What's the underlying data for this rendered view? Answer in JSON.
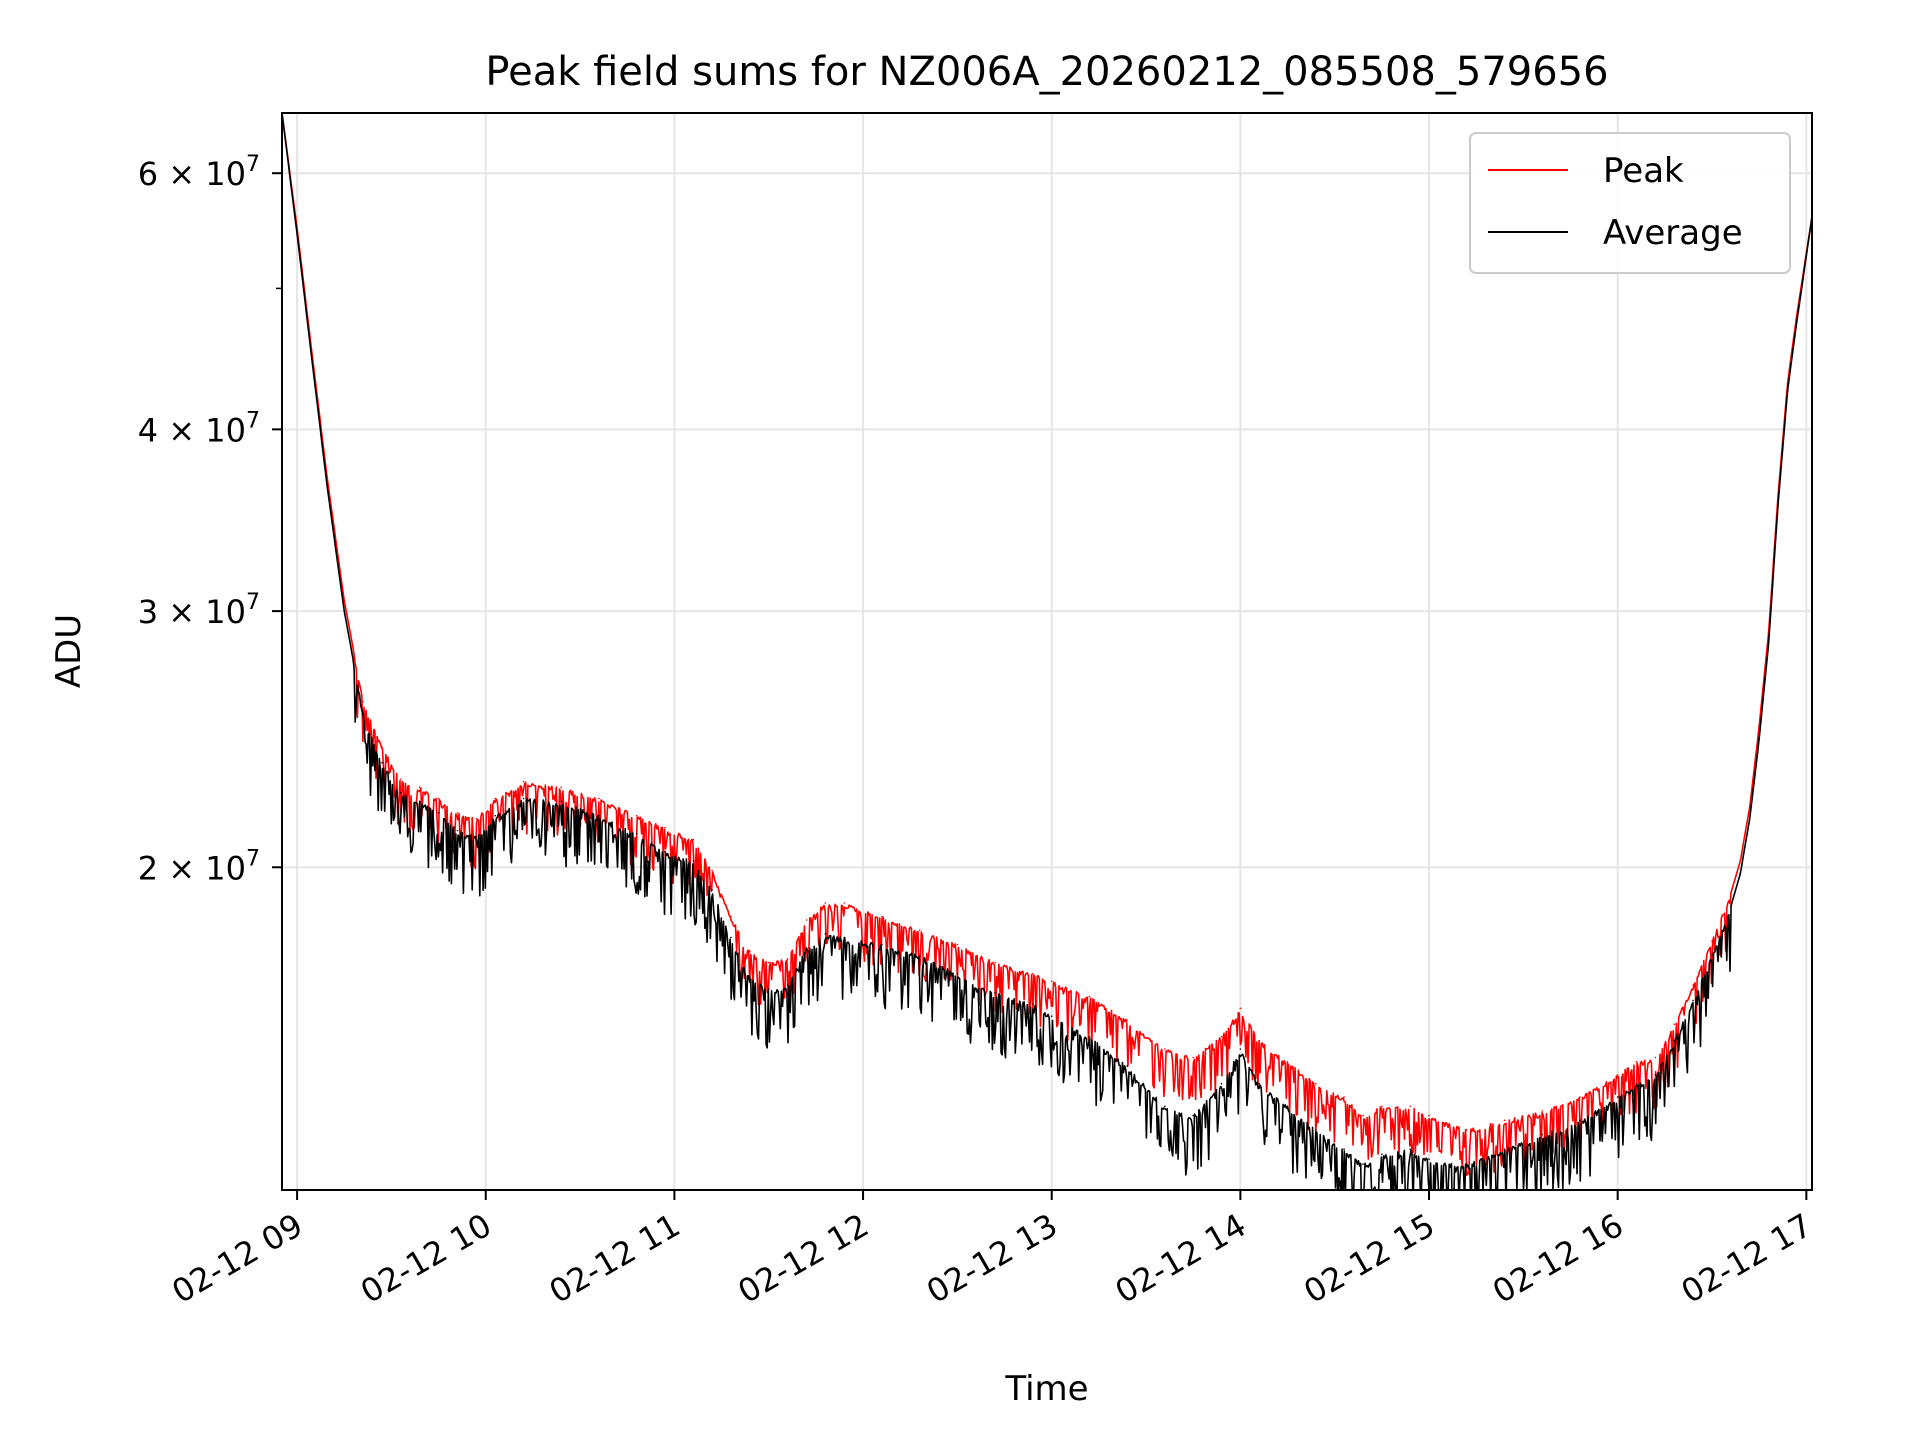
{
  "chart_data": {
    "type": "line",
    "title": "Peak field sums for NZ006A_20260212_085508_579656",
    "xlabel": "Time",
    "ylabel": "ADU",
    "yscale": "log",
    "grid": true,
    "legend_position": "upper right",
    "xlim_hours": [
      8.92,
      17.03
    ],
    "ylim": [
      12000000,
      66000000
    ],
    "x_ticks": [
      {
        "hour": 9,
        "label": "02-12 09"
      },
      {
        "hour": 10,
        "label": "02-12 10"
      },
      {
        "hour": 11,
        "label": "02-12 11"
      },
      {
        "hour": 12,
        "label": "02-12 12"
      },
      {
        "hour": 13,
        "label": "02-12 13"
      },
      {
        "hour": 14,
        "label": "02-12 14"
      },
      {
        "hour": 15,
        "label": "02-12 15"
      },
      {
        "hour": 16,
        "label": "02-12 16"
      },
      {
        "hour": 17,
        "label": "02-12 17"
      }
    ],
    "y_ticks": [
      {
        "value": 20000000,
        "mant": "2",
        "exp": "7"
      },
      {
        "value": 30000000,
        "mant": "3",
        "exp": "7"
      },
      {
        "value": 40000000,
        "mant": "4",
        "exp": "7"
      },
      {
        "value": 60000000,
        "mant": "6",
        "exp": "7"
      }
    ],
    "y_minor_ticks": [
      50000000
    ],
    "series": [
      {
        "name": "Peak",
        "color": "#ff0000",
        "x_hours": [
          8.92,
          9.0,
          9.08,
          9.16,
          9.25,
          9.35,
          9.45,
          9.55,
          9.65,
          9.75,
          9.85,
          9.95,
          10.05,
          10.2,
          10.4,
          10.6,
          10.8,
          10.95,
          11.1,
          11.2,
          11.3,
          11.4,
          11.5,
          11.6,
          11.7,
          11.8,
          11.9,
          12.1,
          12.3,
          12.5,
          12.7,
          12.9,
          13.0,
          13.2,
          13.4,
          13.6,
          13.75,
          13.9,
          14.0,
          14.1,
          14.25,
          14.4,
          14.55,
          14.65,
          14.75,
          14.9,
          15.0,
          15.2,
          15.4,
          15.6,
          15.8,
          16.0,
          16.1,
          16.2,
          16.3,
          16.4,
          16.5,
          16.6,
          16.65,
          16.7,
          16.75,
          16.8,
          16.85,
          16.9,
          16.95,
          17.03
        ],
        "values": [
          66000000,
          55000000,
          45000000,
          37000000,
          30500000,
          26000000,
          24200000,
          23000000,
          22700000,
          22300000,
          21800000,
          21600000,
          22300000,
          22900000,
          22700000,
          22300000,
          21700000,
          21300000,
          20900000,
          19900000,
          18500000,
          17500000,
          17200000,
          17300000,
          18400000,
          18900000,
          18900000,
          18500000,
          18100000,
          17700000,
          17200000,
          16900000,
          16700000,
          16300000,
          15700000,
          15000000,
          14800000,
          15300000,
          16000000,
          15200000,
          14700000,
          14200000,
          13900000,
          13500000,
          13700000,
          13700000,
          13500000,
          13200000,
          13400000,
          13600000,
          13900000,
          14400000,
          14700000,
          14800000,
          15600000,
          16600000,
          17800000,
          19200000,
          20200000,
          22000000,
          25000000,
          29000000,
          36000000,
          43000000,
          48000000,
          56000000
        ]
      },
      {
        "name": "Average",
        "color": "#000000",
        "x_hours": [
          8.92,
          9.0,
          9.08,
          9.16,
          9.25,
          9.35,
          9.45,
          9.55,
          9.65,
          9.75,
          9.85,
          9.95,
          10.05,
          10.2,
          10.4,
          10.6,
          10.8,
          10.95,
          11.1,
          11.2,
          11.3,
          11.4,
          11.5,
          11.6,
          11.7,
          11.8,
          11.9,
          12.1,
          12.3,
          12.5,
          12.7,
          12.9,
          13.0,
          13.2,
          13.4,
          13.6,
          13.75,
          13.9,
          14.0,
          14.1,
          14.25,
          14.4,
          14.55,
          14.65,
          14.75,
          14.9,
          15.0,
          15.2,
          15.4,
          15.6,
          15.8,
          16.0,
          16.1,
          16.2,
          16.3,
          16.4,
          16.5,
          16.6,
          16.65,
          16.7,
          16.75,
          16.8,
          16.85,
          16.9,
          16.95,
          17.03
        ],
        "values": [
          66000000,
          54500000,
          44500000,
          36500000,
          30000000,
          25500000,
          23600000,
          22500000,
          22200000,
          21800000,
          21200000,
          21000000,
          21700000,
          22300000,
          22200000,
          21700000,
          21100000,
          20500000,
          20200000,
          19300000,
          17900000,
          16800000,
          16500000,
          16600000,
          17600000,
          18000000,
          17900000,
          17700000,
          17400000,
          16900000,
          16400000,
          16100000,
          15800000,
          15300000,
          14600000,
          13700000,
          13500000,
          14200000,
          15000000,
          14200000,
          13700000,
          13200000,
          12800000,
          12500000,
          12700000,
          12800000,
          12600000,
          12500000,
          12800000,
          13100000,
          13400000,
          13900000,
          14200000,
          14400000,
          15200000,
          16200000,
          17400000,
          18800000,
          19800000,
          21600000,
          24500000,
          28500000,
          35500000,
          42500000,
          47500000,
          56000000
        ]
      }
    ]
  }
}
